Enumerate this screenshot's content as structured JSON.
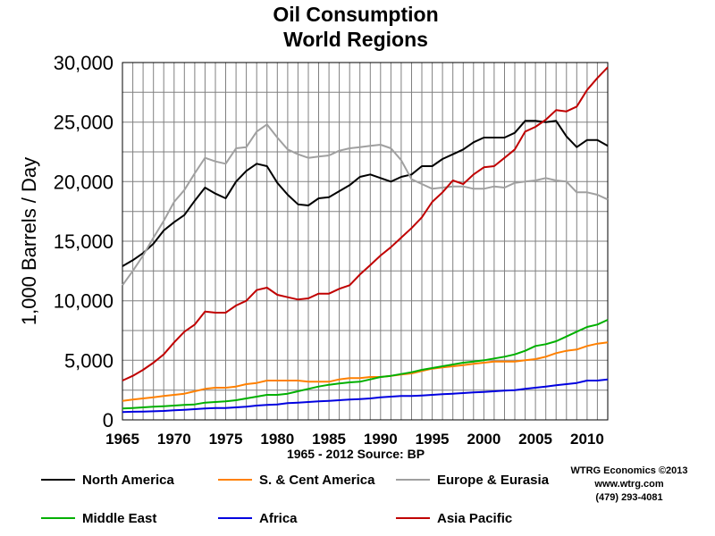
{
  "chart_data": {
    "type": "line",
    "title": [
      "Oil Consumption",
      "World Regions"
    ],
    "ylabel": "1,000 Barrels / Day",
    "xlabel": "1965 - 2012 Source: BP",
    "x": [
      1965,
      1966,
      1967,
      1968,
      1969,
      1970,
      1971,
      1972,
      1973,
      1974,
      1975,
      1976,
      1977,
      1978,
      1979,
      1980,
      1981,
      1982,
      1983,
      1984,
      1985,
      1986,
      1987,
      1988,
      1989,
      1990,
      1991,
      1992,
      1993,
      1994,
      1995,
      1996,
      1997,
      1998,
      1999,
      2000,
      2001,
      2002,
      2003,
      2004,
      2005,
      2006,
      2007,
      2008,
      2009,
      2010,
      2011,
      2012
    ],
    "xlim": [
      1965,
      2012
    ],
    "ylim": [
      0,
      30000
    ],
    "yticks": [
      0,
      5000,
      10000,
      15000,
      20000,
      25000,
      30000
    ],
    "ytick_labels": [
      "0",
      "5,000",
      "10,000",
      "15,000",
      "20,000",
      "25,000",
      "30,000"
    ],
    "xticks": [
      1965,
      1970,
      1975,
      1980,
      1985,
      1990,
      1995,
      2000,
      2005,
      2010
    ],
    "xtick_labels": [
      "1965",
      "1970",
      "1975",
      "1980",
      "1985",
      "1990",
      "1995",
      "2000",
      "2005",
      "2010"
    ],
    "grid": true,
    "legend_position": "bottom",
    "series": [
      {
        "name": "North America",
        "color": "#000000",
        "values": [
          12900,
          13400,
          14000,
          14800,
          15900,
          16600,
          17200,
          18400,
          19500,
          19000,
          18600,
          20000,
          20900,
          21500,
          21300,
          19900,
          18900,
          18100,
          18000,
          18600,
          18700,
          19200,
          19700,
          20400,
          20600,
          20300,
          20000,
          20400,
          20600,
          21300,
          21300,
          21900,
          22300,
          22700,
          23300,
          23700,
          23700,
          23700,
          24100,
          25100,
          25100,
          25000,
          25100,
          23800,
          22900,
          23500,
          23500,
          23000
        ]
      },
      {
        "name": "S. & Cent America",
        "color": "#ff8000",
        "values": [
          1600,
          1700,
          1800,
          1900,
          2000,
          2100,
          2200,
          2400,
          2600,
          2700,
          2700,
          2800,
          3000,
          3100,
          3300,
          3300,
          3300,
          3300,
          3200,
          3200,
          3200,
          3400,
          3500,
          3500,
          3600,
          3600,
          3700,
          3800,
          3900,
          4100,
          4300,
          4400,
          4500,
          4600,
          4700,
          4800,
          4900,
          4900,
          4900,
          5000,
          5100,
          5300,
          5600,
          5800,
          5900,
          6200,
          6400,
          6500
        ]
      },
      {
        "name": "Europe & Eurasia",
        "color": "#a0a0a0",
        "values": [
          11300,
          12500,
          13800,
          15300,
          16700,
          18300,
          19300,
          20700,
          22000,
          21700,
          21500,
          22800,
          22900,
          24200,
          24800,
          23700,
          22700,
          22300,
          22000,
          22100,
          22200,
          22600,
          22800,
          22900,
          23000,
          23100,
          22800,
          21800,
          20200,
          19800,
          19400,
          19500,
          19600,
          19600,
          19400,
          19400,
          19600,
          19500,
          19900,
          20000,
          20100,
          20300,
          20100,
          20000,
          19100,
          19100,
          18900,
          18500
        ]
      },
      {
        "name": "Middle East",
        "color": "#00b000",
        "values": [
          950,
          1000,
          1050,
          1100,
          1150,
          1200,
          1250,
          1300,
          1450,
          1500,
          1550,
          1650,
          1800,
          1950,
          2100,
          2100,
          2200,
          2400,
          2600,
          2800,
          2950,
          3050,
          3150,
          3200,
          3400,
          3600,
          3700,
          3850,
          4000,
          4200,
          4350,
          4500,
          4650,
          4800,
          4900,
          5000,
          5150,
          5300,
          5500,
          5800,
          6200,
          6350,
          6600,
          7000,
          7400,
          7800,
          8000,
          8400
        ]
      },
      {
        "name": "Africa",
        "color": "#0000e0",
        "values": [
          650,
          680,
          700,
          720,
          750,
          800,
          850,
          900,
          950,
          1000,
          1000,
          1050,
          1100,
          1200,
          1250,
          1300,
          1400,
          1450,
          1500,
          1550,
          1600,
          1650,
          1700,
          1750,
          1800,
          1900,
          1950,
          2000,
          2000,
          2050,
          2100,
          2150,
          2200,
          2250,
          2300,
          2350,
          2400,
          2450,
          2500,
          2600,
          2700,
          2800,
          2900,
          3000,
          3100,
          3300,
          3300,
          3400
        ]
      },
      {
        "name": "Asia Pacific",
        "color": "#c00000",
        "values": [
          3300,
          3700,
          4200,
          4800,
          5500,
          6500,
          7400,
          8000,
          9100,
          9000,
          9000,
          9600,
          10000,
          10900,
          11100,
          10500,
          10300,
          10100,
          10200,
          10600,
          10600,
          11000,
          11300,
          12200,
          13000,
          13800,
          14500,
          15300,
          16100,
          17000,
          18300,
          19100,
          20100,
          19800,
          20600,
          21200,
          21300,
          22000,
          22700,
          24200,
          24600,
          25200,
          26000,
          25900,
          26300,
          27700,
          28700,
          29600
        ]
      }
    ]
  },
  "credits": {
    "line1": "WTRG Economics  ©2013",
    "line2": "www.wtrg.com",
    "line3": "(479) 293-4081"
  }
}
